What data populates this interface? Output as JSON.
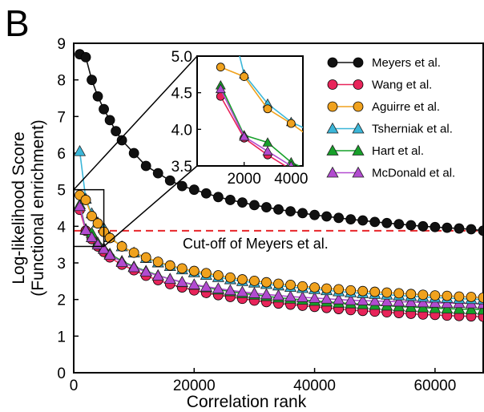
{
  "panel_label": "B",
  "chart_data": {
    "type": "line",
    "xlabel": "Correlation rank",
    "ylabel_line1": "Log-likelihood Score",
    "ylabel_line2": "(Functional enrichment)",
    "xlim": [
      0,
      68000
    ],
    "ylim": [
      0,
      9
    ],
    "xticks": [
      0,
      20000,
      40000,
      60000
    ],
    "xtick_labels": [
      "0",
      "20000",
      "40000",
      "60000"
    ],
    "yticks": [
      0,
      1,
      2,
      3,
      4,
      5,
      6,
      7,
      8,
      9
    ],
    "ytick_labels": [
      "0",
      "1",
      "2",
      "3",
      "4",
      "5",
      "6",
      "7",
      "8",
      "9"
    ],
    "grid": false,
    "legend_position": "top-right",
    "cutoff": {
      "y": 3.88,
      "label": "Cut-off of Meyers et al.",
      "color": "#e8262a"
    },
    "series": [
      {
        "name": "Meyers et al.",
        "color": "#111111",
        "marker": "circle",
        "x": [
          1000,
          2000,
          3000,
          4000,
          5000,
          6000,
          7000,
          8000,
          10000,
          12000,
          14000,
          16000,
          18000,
          20000,
          22000,
          24000,
          26000,
          28000,
          30000,
          32000,
          34000,
          36000,
          38000,
          40000,
          42000,
          44000,
          46000,
          48000,
          50000,
          52000,
          54000,
          56000,
          58000,
          60000,
          62000,
          64000,
          66000,
          68000
        ],
        "y": [
          8.7,
          8.62,
          8.0,
          7.55,
          7.2,
          6.9,
          6.6,
          6.35,
          6.0,
          5.65,
          5.45,
          5.25,
          5.1,
          5.0,
          4.9,
          4.8,
          4.72,
          4.65,
          4.58,
          4.52,
          4.46,
          4.41,
          4.36,
          4.31,
          4.27,
          4.23,
          4.19,
          4.16,
          4.12,
          4.09,
          4.06,
          4.03,
          4.0,
          3.98,
          3.96,
          3.94,
          3.92,
          3.88
        ]
      },
      {
        "name": "Wang et al.",
        "color": "#e8245a",
        "marker": "circle",
        "x": [
          1000,
          2000,
          3000,
          4000,
          5000,
          6000,
          8000,
          10000,
          12000,
          14000,
          16000,
          18000,
          20000,
          22000,
          24000,
          26000,
          28000,
          30000,
          32000,
          34000,
          36000,
          38000,
          40000,
          42000,
          44000,
          46000,
          48000,
          50000,
          52000,
          54000,
          56000,
          58000,
          60000,
          62000,
          64000,
          66000,
          68000
        ],
        "y": [
          4.45,
          3.88,
          3.65,
          3.45,
          3.3,
          3.15,
          2.95,
          2.8,
          2.65,
          2.53,
          2.42,
          2.33,
          2.25,
          2.18,
          2.12,
          2.07,
          2.02,
          1.97,
          1.93,
          1.89,
          1.86,
          1.83,
          1.8,
          1.77,
          1.74,
          1.71,
          1.69,
          1.67,
          1.65,
          1.63,
          1.61,
          1.59,
          1.58,
          1.56,
          1.55,
          1.54,
          1.53
        ]
      },
      {
        "name": "Aguirre et al.",
        "color": "#f0a21e",
        "marker": "circle",
        "x": [
          1000,
          2000,
          3000,
          4000,
          5000,
          6000,
          8000,
          10000,
          12000,
          14000,
          16000,
          18000,
          20000,
          22000,
          24000,
          26000,
          28000,
          30000,
          32000,
          34000,
          36000,
          38000,
          40000,
          42000,
          44000,
          46000,
          48000,
          50000,
          52000,
          54000,
          56000,
          58000,
          60000,
          62000,
          64000,
          66000,
          68000
        ],
        "y": [
          4.85,
          4.72,
          4.28,
          4.08,
          3.85,
          3.68,
          3.45,
          3.28,
          3.15,
          3.03,
          2.93,
          2.85,
          2.78,
          2.72,
          2.66,
          2.6,
          2.55,
          2.51,
          2.47,
          2.43,
          2.4,
          2.36,
          2.33,
          2.3,
          2.28,
          2.25,
          2.23,
          2.21,
          2.19,
          2.17,
          2.15,
          2.13,
          2.11,
          2.1,
          2.08,
          2.07,
          2.05
        ]
      },
      {
        "name": "Tsherniak et al.",
        "color": "#3bb6d8",
        "marker": "triangle",
        "x": [
          1000,
          2000,
          3000,
          4000,
          5000,
          6000,
          8000,
          10000,
          12000,
          14000,
          16000,
          18000,
          20000,
          22000,
          24000,
          26000,
          28000,
          30000,
          32000,
          34000,
          36000,
          38000,
          40000,
          42000,
          44000,
          46000,
          48000,
          50000,
          52000,
          54000,
          56000,
          58000,
          60000,
          62000,
          64000,
          66000,
          68000
        ],
        "y": [
          6.05,
          4.75,
          4.35,
          4.1,
          3.95,
          3.7,
          3.45,
          3.28,
          3.13,
          3.01,
          2.91,
          2.82,
          2.74,
          2.67,
          2.61,
          2.55,
          2.5,
          2.46,
          2.42,
          2.38,
          2.34,
          2.31,
          2.28,
          2.25,
          2.22,
          2.19,
          2.17,
          2.15,
          2.13,
          2.11,
          2.09,
          2.07,
          2.05,
          2.04,
          2.02,
          2.01,
          2.0
        ]
      },
      {
        "name": "Hart et al.",
        "color": "#17a02a",
        "marker": "triangle",
        "x": [
          1000,
          2000,
          3000,
          4000,
          5000,
          6000,
          8000,
          10000,
          12000,
          14000,
          16000,
          18000,
          20000,
          22000,
          24000,
          26000,
          28000,
          30000,
          32000,
          34000,
          36000,
          38000,
          40000,
          42000,
          44000,
          46000,
          48000,
          50000,
          52000,
          54000,
          56000,
          58000,
          60000,
          62000,
          64000,
          66000,
          68000
        ],
        "y": [
          4.6,
          3.92,
          3.82,
          3.55,
          3.4,
          3.25,
          3.05,
          2.9,
          2.78,
          2.66,
          2.56,
          2.47,
          2.4,
          2.33,
          2.27,
          2.22,
          2.17,
          2.13,
          2.09,
          2.05,
          2.02,
          1.99,
          1.96,
          1.94,
          1.91,
          1.89,
          1.87,
          1.85,
          1.83,
          1.81,
          1.79,
          1.78,
          1.76,
          1.75,
          1.74,
          1.73,
          1.72
        ]
      },
      {
        "name": "McDonald et al.",
        "color": "#b24bd0",
        "marker": "triangle",
        "x": [
          1000,
          2000,
          3000,
          4000,
          5000,
          6000,
          8000,
          10000,
          12000,
          14000,
          16000,
          18000,
          20000,
          22000,
          24000,
          26000,
          28000,
          30000,
          32000,
          34000,
          36000,
          38000,
          40000,
          42000,
          44000,
          46000,
          48000,
          50000,
          52000,
          54000,
          56000,
          58000,
          60000,
          62000,
          64000,
          66000,
          68000
        ],
        "y": [
          4.55,
          3.9,
          3.7,
          3.5,
          3.38,
          3.22,
          3.02,
          2.88,
          2.76,
          2.65,
          2.56,
          2.48,
          2.41,
          2.35,
          2.3,
          2.25,
          2.21,
          2.17,
          2.14,
          2.11,
          2.08,
          2.06,
          2.04,
          2.02,
          2.0,
          1.98,
          1.97,
          1.96,
          1.95,
          1.94,
          1.93,
          1.92,
          1.91,
          1.9,
          1.9,
          1.89,
          1.88
        ]
      }
    ],
    "inset": {
      "xlim": [
        0,
        4500
      ],
      "ylim": [
        3.5,
        5.0
      ],
      "xticks": [
        2000,
        4000
      ],
      "xtick_labels": [
        "2000",
        "4000"
      ],
      "yticks": [
        3.5,
        4.0,
        4.5,
        5.0
      ],
      "ytick_labels": [
        "3.5",
        "4.0",
        "4.5",
        "5.0"
      ],
      "zoom_region": {
        "x": [
          0,
          5000
        ],
        "y": [
          3.45,
          5.0
        ]
      }
    }
  }
}
